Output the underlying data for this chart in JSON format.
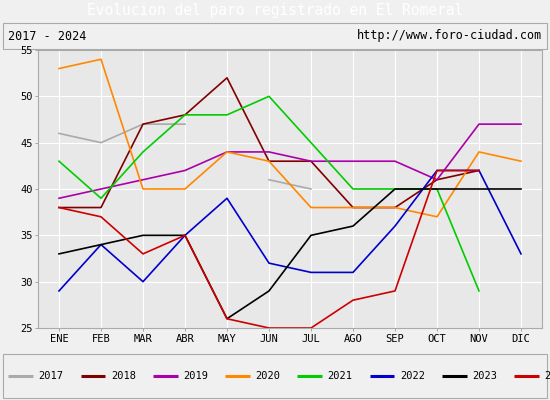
{
  "title": "Evolucion del paro registrado en El Romeral",
  "subtitle_left": "2017 - 2024",
  "subtitle_right": "http://www.foro-ciudad.com",
  "months": [
    "ENE",
    "FEB",
    "MAR",
    "ABR",
    "MAY",
    "JUN",
    "JUL",
    "AGO",
    "SEP",
    "OCT",
    "NOV",
    "DIC"
  ],
  "ylim": [
    25,
    55
  ],
  "yticks": [
    25,
    30,
    35,
    40,
    45,
    50,
    55
  ],
  "series": {
    "2017": {
      "color": "#aaaaaa",
      "data": [
        46,
        45,
        47,
        47,
        null,
        41,
        40,
        null,
        null,
        null,
        null,
        null
      ]
    },
    "2018": {
      "color": "#800000",
      "data": [
        38,
        38,
        47,
        48,
        52,
        43,
        43,
        38,
        38,
        41,
        42,
        null
      ]
    },
    "2019": {
      "color": "#aa00aa",
      "data": [
        39,
        40,
        41,
        42,
        44,
        44,
        43,
        43,
        43,
        41,
        47,
        47
      ]
    },
    "2020": {
      "color": "#ff8800",
      "data": [
        53,
        54,
        40,
        40,
        44,
        43,
        38,
        38,
        38,
        37,
        44,
        43
      ]
    },
    "2021": {
      "color": "#00cc00",
      "data": [
        43,
        39,
        44,
        48,
        48,
        50,
        45,
        40,
        40,
        40,
        29,
        null
      ]
    },
    "2022": {
      "color": "#0000cc",
      "data": [
        29,
        34,
        30,
        35,
        39,
        32,
        31,
        31,
        36,
        42,
        42,
        33
      ]
    },
    "2023": {
      "color": "#000000",
      "data": [
        33,
        34,
        35,
        35,
        26,
        29,
        35,
        36,
        40,
        40,
        40,
        40
      ]
    },
    "2024": {
      "color": "#cc0000",
      "data": [
        38,
        37,
        33,
        35,
        26,
        25,
        25,
        28,
        29,
        42,
        42,
        null
      ]
    }
  },
  "background_color": "#f0f0f0",
  "plot_bg": "#e8e8e8",
  "title_bg": "#4472c4",
  "title_color": "white",
  "grid_color": "#ffffff",
  "border_color": "#aaaaaa"
}
